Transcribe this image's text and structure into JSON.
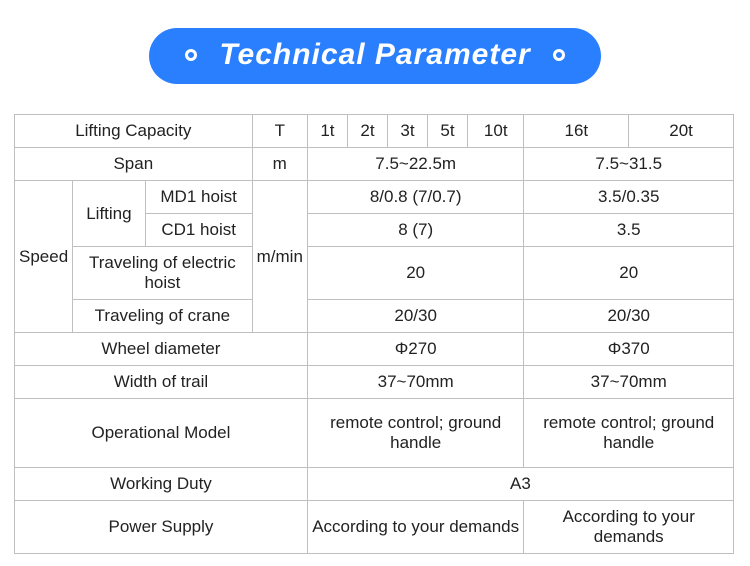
{
  "banner": {
    "title": "Technical Parameter",
    "bg_color": "#2a7fff",
    "text_color": "#ffffff",
    "fontsize": 30
  },
  "table": {
    "border_color": "#bfbfbf",
    "text_color": "#222222",
    "fontsize": 17,
    "row1": {
      "lifting_capacity": "Lifting Capacity",
      "unit": "T",
      "c1": "1t",
      "c2": "2t",
      "c3": "3t",
      "c4": "5t",
      "c5": "10t",
      "c6": "16t",
      "c7": "20t"
    },
    "row2": {
      "span": "Span",
      "unit": "m",
      "v1": "7.5~22.5m",
      "v2": "7.5~31.5"
    },
    "speed": {
      "label": "Speed",
      "lifting": "Lifting",
      "md1": {
        "label": "MD1 hoist",
        "v1": "8/0.8 (7/0.7)",
        "v2": "3.5/0.35"
      },
      "cd1": {
        "label": "CD1 hoist",
        "v1": "8 (7)",
        "v2": "3.5"
      },
      "unit": "m/min",
      "trav_hoist": {
        "label": "Traveling of electric hoist",
        "v1": "20",
        "v2": "20"
      },
      "trav_crane": {
        "label": "Traveling of crane",
        "v1": "20/30",
        "v2": "20/30"
      }
    },
    "wheel": {
      "label": "Wheel diameter",
      "v1": "Φ270",
      "v2": "Φ370"
    },
    "trail": {
      "label": "Width of trail",
      "v1": "37~70mm",
      "v2": "37~70mm"
    },
    "opmodel": {
      "label": "Operational Model",
      "v1": "remote control; ground handle",
      "v2": "remote control; ground handle"
    },
    "duty": {
      "label": "Working Duty",
      "v": "A3"
    },
    "power": {
      "label": "Power Supply",
      "v1": "According to your demands",
      "v2": "According to your demands"
    }
  }
}
